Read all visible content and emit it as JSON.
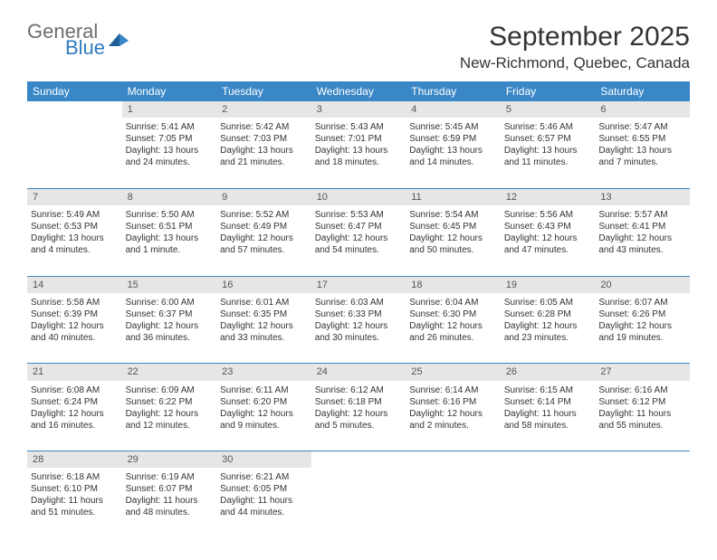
{
  "brand": {
    "general": "General",
    "blue": "Blue"
  },
  "title": "September 2025",
  "location": "New-Richmond, Quebec, Canada",
  "colors": {
    "header_bg": "#3a87c7",
    "header_text": "#ffffff",
    "daynum_bg": "#e6e6e6",
    "border": "#3a87c7",
    "text": "#333333",
    "logo_gray": "#6e6e6e",
    "logo_blue": "#2f7bbf"
  },
  "day_headers": [
    "Sunday",
    "Monday",
    "Tuesday",
    "Wednesday",
    "Thursday",
    "Friday",
    "Saturday"
  ],
  "weeks": [
    {
      "numbers": [
        "",
        "1",
        "2",
        "3",
        "4",
        "5",
        "6"
      ],
      "cells": [
        {
          "sunrise": "",
          "sunset": "",
          "daylight": ""
        },
        {
          "sunrise": "Sunrise: 5:41 AM",
          "sunset": "Sunset: 7:05 PM",
          "daylight": "Daylight: 13 hours and 24 minutes."
        },
        {
          "sunrise": "Sunrise: 5:42 AM",
          "sunset": "Sunset: 7:03 PM",
          "daylight": "Daylight: 13 hours and 21 minutes."
        },
        {
          "sunrise": "Sunrise: 5:43 AM",
          "sunset": "Sunset: 7:01 PM",
          "daylight": "Daylight: 13 hours and 18 minutes."
        },
        {
          "sunrise": "Sunrise: 5:45 AM",
          "sunset": "Sunset: 6:59 PM",
          "daylight": "Daylight: 13 hours and 14 minutes."
        },
        {
          "sunrise": "Sunrise: 5:46 AM",
          "sunset": "Sunset: 6:57 PM",
          "daylight": "Daylight: 13 hours and 11 minutes."
        },
        {
          "sunrise": "Sunrise: 5:47 AM",
          "sunset": "Sunset: 6:55 PM",
          "daylight": "Daylight: 13 hours and 7 minutes."
        }
      ]
    },
    {
      "numbers": [
        "7",
        "8",
        "9",
        "10",
        "11",
        "12",
        "13"
      ],
      "cells": [
        {
          "sunrise": "Sunrise: 5:49 AM",
          "sunset": "Sunset: 6:53 PM",
          "daylight": "Daylight: 13 hours and 4 minutes."
        },
        {
          "sunrise": "Sunrise: 5:50 AM",
          "sunset": "Sunset: 6:51 PM",
          "daylight": "Daylight: 13 hours and 1 minute."
        },
        {
          "sunrise": "Sunrise: 5:52 AM",
          "sunset": "Sunset: 6:49 PM",
          "daylight": "Daylight: 12 hours and 57 minutes."
        },
        {
          "sunrise": "Sunrise: 5:53 AM",
          "sunset": "Sunset: 6:47 PM",
          "daylight": "Daylight: 12 hours and 54 minutes."
        },
        {
          "sunrise": "Sunrise: 5:54 AM",
          "sunset": "Sunset: 6:45 PM",
          "daylight": "Daylight: 12 hours and 50 minutes."
        },
        {
          "sunrise": "Sunrise: 5:56 AM",
          "sunset": "Sunset: 6:43 PM",
          "daylight": "Daylight: 12 hours and 47 minutes."
        },
        {
          "sunrise": "Sunrise: 5:57 AM",
          "sunset": "Sunset: 6:41 PM",
          "daylight": "Daylight: 12 hours and 43 minutes."
        }
      ]
    },
    {
      "numbers": [
        "14",
        "15",
        "16",
        "17",
        "18",
        "19",
        "20"
      ],
      "cells": [
        {
          "sunrise": "Sunrise: 5:58 AM",
          "sunset": "Sunset: 6:39 PM",
          "daylight": "Daylight: 12 hours and 40 minutes."
        },
        {
          "sunrise": "Sunrise: 6:00 AM",
          "sunset": "Sunset: 6:37 PM",
          "daylight": "Daylight: 12 hours and 36 minutes."
        },
        {
          "sunrise": "Sunrise: 6:01 AM",
          "sunset": "Sunset: 6:35 PM",
          "daylight": "Daylight: 12 hours and 33 minutes."
        },
        {
          "sunrise": "Sunrise: 6:03 AM",
          "sunset": "Sunset: 6:33 PM",
          "daylight": "Daylight: 12 hours and 30 minutes."
        },
        {
          "sunrise": "Sunrise: 6:04 AM",
          "sunset": "Sunset: 6:30 PM",
          "daylight": "Daylight: 12 hours and 26 minutes."
        },
        {
          "sunrise": "Sunrise: 6:05 AM",
          "sunset": "Sunset: 6:28 PM",
          "daylight": "Daylight: 12 hours and 23 minutes."
        },
        {
          "sunrise": "Sunrise: 6:07 AM",
          "sunset": "Sunset: 6:26 PM",
          "daylight": "Daylight: 12 hours and 19 minutes."
        }
      ]
    },
    {
      "numbers": [
        "21",
        "22",
        "23",
        "24",
        "25",
        "26",
        "27"
      ],
      "cells": [
        {
          "sunrise": "Sunrise: 6:08 AM",
          "sunset": "Sunset: 6:24 PM",
          "daylight": "Daylight: 12 hours and 16 minutes."
        },
        {
          "sunrise": "Sunrise: 6:09 AM",
          "sunset": "Sunset: 6:22 PM",
          "daylight": "Daylight: 12 hours and 12 minutes."
        },
        {
          "sunrise": "Sunrise: 6:11 AM",
          "sunset": "Sunset: 6:20 PM",
          "daylight": "Daylight: 12 hours and 9 minutes."
        },
        {
          "sunrise": "Sunrise: 6:12 AM",
          "sunset": "Sunset: 6:18 PM",
          "daylight": "Daylight: 12 hours and 5 minutes."
        },
        {
          "sunrise": "Sunrise: 6:14 AM",
          "sunset": "Sunset: 6:16 PM",
          "daylight": "Daylight: 12 hours and 2 minutes."
        },
        {
          "sunrise": "Sunrise: 6:15 AM",
          "sunset": "Sunset: 6:14 PM",
          "daylight": "Daylight: 11 hours and 58 minutes."
        },
        {
          "sunrise": "Sunrise: 6:16 AM",
          "sunset": "Sunset: 6:12 PM",
          "daylight": "Daylight: 11 hours and 55 minutes."
        }
      ]
    },
    {
      "numbers": [
        "28",
        "29",
        "30",
        "",
        "",
        "",
        ""
      ],
      "cells": [
        {
          "sunrise": "Sunrise: 6:18 AM",
          "sunset": "Sunset: 6:10 PM",
          "daylight": "Daylight: 11 hours and 51 minutes."
        },
        {
          "sunrise": "Sunrise: 6:19 AM",
          "sunset": "Sunset: 6:07 PM",
          "daylight": "Daylight: 11 hours and 48 minutes."
        },
        {
          "sunrise": "Sunrise: 6:21 AM",
          "sunset": "Sunset: 6:05 PM",
          "daylight": "Daylight: 11 hours and 44 minutes."
        },
        {
          "sunrise": "",
          "sunset": "",
          "daylight": ""
        },
        {
          "sunrise": "",
          "sunset": "",
          "daylight": ""
        },
        {
          "sunrise": "",
          "sunset": "",
          "daylight": ""
        },
        {
          "sunrise": "",
          "sunset": "",
          "daylight": ""
        }
      ]
    }
  ]
}
